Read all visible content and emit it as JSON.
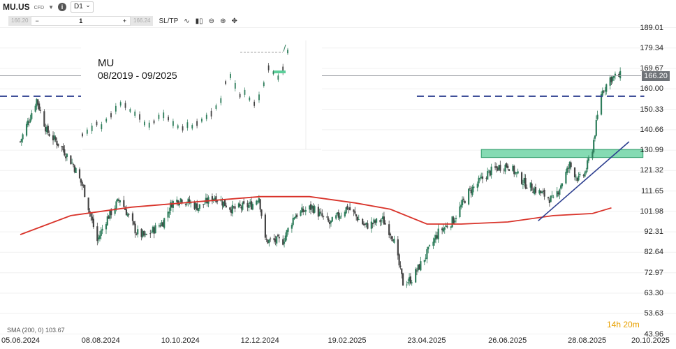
{
  "toolbar": {
    "symbol": "MU.US",
    "instrument_type": "CFD",
    "timeframe": "D1",
    "sell_price": "166.20",
    "buy_price": "166.24",
    "quantity": "1",
    "minus": "−",
    "plus": "+",
    "sltp": "SL/TP"
  },
  "inset": {
    "title": "MU",
    "subtitle": "08/2019 - 09/2025"
  },
  "indicator": {
    "label": "SMA (200, 0)",
    "value": "103.67"
  },
  "countdown": {
    "hours": "14h",
    "minutes": "20m"
  },
  "colors": {
    "up": "#2e7d5b",
    "down": "#444444",
    "sma": "#d9342b",
    "resistance_dashed": "#2c3e8f",
    "trendline": "#2c3e8f",
    "zone": "#5ccf9a",
    "current_price": "#6f7378",
    "countdown": "#e8a000"
  },
  "chart_data": {
    "type": "candlestick",
    "ylim": [
      43.96,
      198.7
    ],
    "y_ticks": [
      "189.01",
      "179.34",
      "169.67",
      "160.00",
      "150.33",
      "140.66",
      "130.99",
      "121.32",
      "111.65",
      "101.98",
      "92.31",
      "82.64",
      "72.97",
      "63.30",
      "53.63",
      "43.96"
    ],
    "x_ticks": [
      "05.06.2024",
      "08.08.2024",
      "10.10.2024",
      "12.12.2024",
      "19.02.2025",
      "23.04.2025",
      "26.06.2025",
      "28.08.2025",
      "20.10.2025"
    ],
    "current_price": "166.20",
    "resistance_level": 156.5,
    "support_zone": [
      127.5,
      131.3
    ],
    "price_path": [
      [
        "2024-06-05",
        135
      ],
      [
        "2024-06-18",
        155
      ],
      [
        "2024-06-26",
        140
      ],
      [
        "2024-07-08",
        132
      ],
      [
        "2024-07-17",
        124
      ],
      [
        "2024-07-25",
        113
      ],
      [
        "2024-08-05",
        88
      ],
      [
        "2024-08-12",
        98
      ],
      [
        "2024-08-23",
        108
      ],
      [
        "2024-09-05",
        92
      ],
      [
        "2024-09-12",
        90
      ],
      [
        "2024-09-26",
        97
      ],
      [
        "2024-10-03",
        106
      ],
      [
        "2024-10-10",
        108
      ],
      [
        "2024-10-24",
        104
      ],
      [
        "2024-11-06",
        109
      ],
      [
        "2024-11-20",
        103
      ],
      [
        "2024-12-05",
        105
      ],
      [
        "2024-12-11",
        109
      ],
      [
        "2024-12-16",
        88
      ],
      [
        "2024-12-30",
        88
      ],
      [
        "2025-01-08",
        100
      ],
      [
        "2025-01-22",
        104
      ],
      [
        "2025-02-05",
        96
      ],
      [
        "2025-02-19",
        104
      ],
      [
        "2025-03-05",
        95
      ],
      [
        "2025-03-19",
        98
      ],
      [
        "2025-03-27",
        90
      ],
      [
        "2025-04-04",
        68
      ],
      [
        "2025-04-11",
        70
      ],
      [
        "2025-04-23",
        82
      ],
      [
        "2025-05-02",
        92
      ],
      [
        "2025-05-14",
        98
      ],
      [
        "2025-05-26",
        111
      ],
      [
        "2025-06-10",
        120
      ],
      [
        "2025-06-19",
        123
      ],
      [
        "2025-06-26",
        124
      ],
      [
        "2025-07-10",
        115
      ],
      [
        "2025-07-24",
        110
      ],
      [
        "2025-08-01",
        107
      ],
      [
        "2025-08-08",
        116
      ],
      [
        "2025-08-14",
        124
      ],
      [
        "2025-08-21",
        117
      ],
      [
        "2025-08-26",
        120
      ],
      [
        "2025-09-01",
        132
      ],
      [
        "2025-09-08",
        158
      ],
      [
        "2025-09-15",
        165
      ],
      [
        "2025-09-23",
        166.2
      ]
    ],
    "sma200": [
      [
        "2024-06-05",
        91
      ],
      [
        "2024-07-15",
        100
      ],
      [
        "2024-09-01",
        104
      ],
      [
        "2024-11-01",
        107
      ],
      [
        "2024-12-12",
        109
      ],
      [
        "2025-01-20",
        109
      ],
      [
        "2025-02-25",
        106
      ],
      [
        "2025-03-25",
        103
      ],
      [
        "2025-04-23",
        96
      ],
      [
        "2025-05-20",
        96
      ],
      [
        "2025-06-26",
        97
      ],
      [
        "2025-08-01",
        100
      ],
      [
        "2025-09-01",
        101
      ],
      [
        "2025-09-16",
        103.67
      ]
    ],
    "trendline": [
      [
        "2025-07-20",
        97.5
      ],
      [
        "2025-09-30",
        135
      ]
    ]
  }
}
